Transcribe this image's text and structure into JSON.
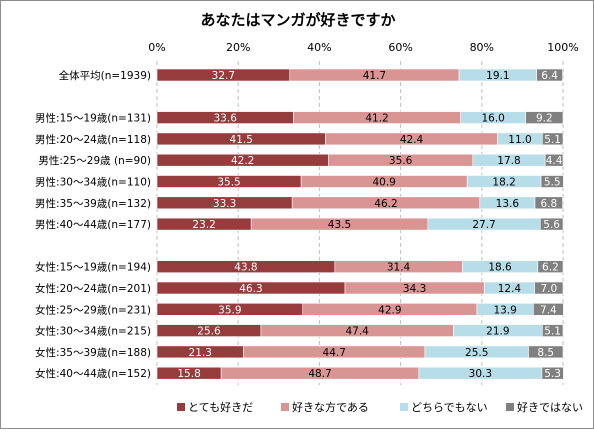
{
  "chart_data": {
    "type": "bar",
    "stacked": true,
    "orientation": "horizontal",
    "title": "あなたはマンガが好きですか",
    "xlim": [
      0,
      100
    ],
    "x_ticks": [
      "0%",
      "20%",
      "40%",
      "60%",
      "80%",
      "100%"
    ],
    "grid": true,
    "legend_position": "bottom",
    "categories": [
      "全体平均(n=1939)",
      "",
      "男性:15～19歳(n=131)",
      "男性:20～24歳(n=118)",
      "男性:25～29歳 (n=90)",
      "男性:30～34歳(n=110)",
      "男性:35～39歳(n=132)",
      "男性:40～44歳(n=177)",
      "",
      "女性:15～19歳(n=194)",
      "女性:20～24歳(n=201)",
      "女性:25～29歳(n=231)",
      "女性:30～34歳(n=215)",
      "女性:35～39歳(n=188)",
      "女性:40～44歳(n=152)"
    ],
    "series": [
      {
        "name": "とても好きだ",
        "color": "#963c3c",
        "label_color": "#ffffff",
        "values": [
          32.7,
          null,
          33.6,
          41.5,
          42.2,
          35.5,
          33.3,
          23.2,
          null,
          43.8,
          46.3,
          35.9,
          25.6,
          21.3,
          15.8
        ]
      },
      {
        "name": "好きな方である",
        "color": "#d99594",
        "label_color": "#000000",
        "values": [
          41.7,
          null,
          41.2,
          42.4,
          35.6,
          40.9,
          46.2,
          43.5,
          null,
          31.4,
          34.3,
          42.9,
          47.4,
          44.7,
          48.7
        ]
      },
      {
        "name": "どちらでもない",
        "color": "#b7dee8",
        "label_color": "#000000",
        "values": [
          19.1,
          null,
          16.0,
          11.0,
          17.8,
          18.2,
          13.6,
          27.7,
          null,
          18.6,
          12.4,
          13.9,
          21.9,
          25.5,
          30.3
        ]
      },
      {
        "name": "好きではない",
        "color": "#808080",
        "label_color": "#ffffff",
        "values": [
          6.4,
          null,
          9.2,
          5.1,
          4.4,
          5.5,
          6.8,
          5.6,
          null,
          6.2,
          7.0,
          7.4,
          5.1,
          8.5,
          5.3
        ]
      }
    ]
  }
}
